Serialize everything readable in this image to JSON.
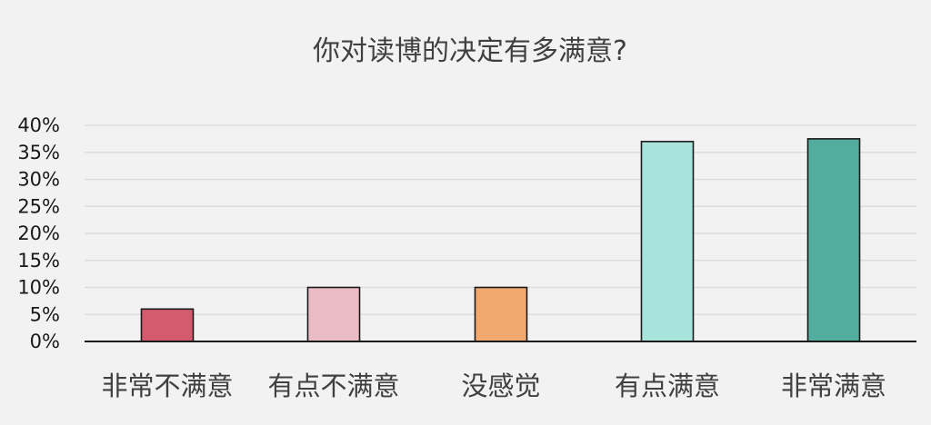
{
  "chart_data": {
    "type": "bar",
    "title": "你对读博的决定有多满意?",
    "xlabel": "",
    "ylabel": "",
    "ylim": [
      0,
      40
    ],
    "yticks": [
      "0%",
      "5%",
      "10%",
      "15%",
      "20%",
      "25%",
      "30%",
      "35%",
      "40%"
    ],
    "grid": true,
    "categories": [
      "非常不满意",
      "有点不满意",
      "没感觉",
      "有点满意",
      "非常满意"
    ],
    "values": [
      6,
      10,
      10,
      37,
      37.5
    ],
    "colors": [
      "#d45a6d",
      "#ecbcc6",
      "#f2a96f",
      "#a8e4dc",
      "#52ad9e"
    ]
  }
}
